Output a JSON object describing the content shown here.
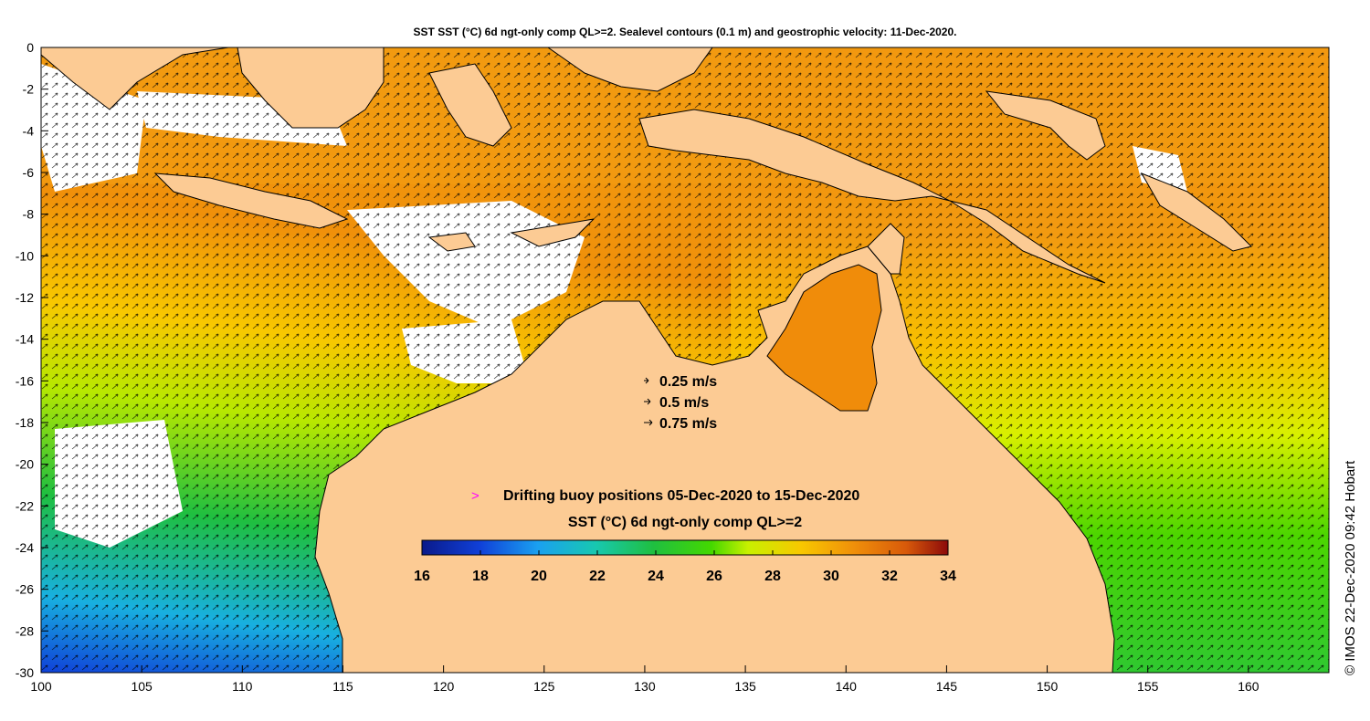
{
  "title": "SST SST (°C) 6d ngt-only comp QL>=2. Sealevel contours (0.1 m) and geostrophic velocity: 11-Dec-2020.",
  "credit": "© IMOS 22-Dec-2020 09:42 Hobart",
  "axes": {
    "x_ticks": [
      "100",
      "105",
      "110",
      "115",
      "120",
      "125",
      "130",
      "135",
      "140",
      "145",
      "150",
      "155",
      "160"
    ],
    "y_ticks": [
      "0",
      "-2",
      "-4",
      "-6",
      "-8",
      "-10",
      "-12",
      "-14",
      "-16",
      "-18",
      "-20",
      "-22",
      "-24",
      "-26",
      "-28",
      "-30"
    ],
    "lon_range": [
      100,
      164
    ],
    "lat_range": [
      -30,
      0
    ]
  },
  "velocity_legend": [
    {
      "label": "0.25 m/s",
      "speed": 0.25
    },
    {
      "label": "0.5 m/s",
      "speed": 0.5
    },
    {
      "label": "0.75 m/s",
      "speed": 0.75
    }
  ],
  "buoy_legend": {
    "label": "Drifting buoy positions 05-Dec-2020 to 15-Dec-2020",
    "marker": ">",
    "marker_color": "#ff00ff"
  },
  "colorbar": {
    "title": "SST (°C) 6d ngt-only comp QL>=2",
    "ticks": [
      "16",
      "18",
      "20",
      "22",
      "24",
      "26",
      "28",
      "30",
      "32",
      "34"
    ],
    "range": [
      16,
      34
    ]
  },
  "colors": {
    "land": "#fccb94",
    "no_data": "#ffffff",
    "coast": "#000000",
    "contour": "#ffffff"
  }
}
